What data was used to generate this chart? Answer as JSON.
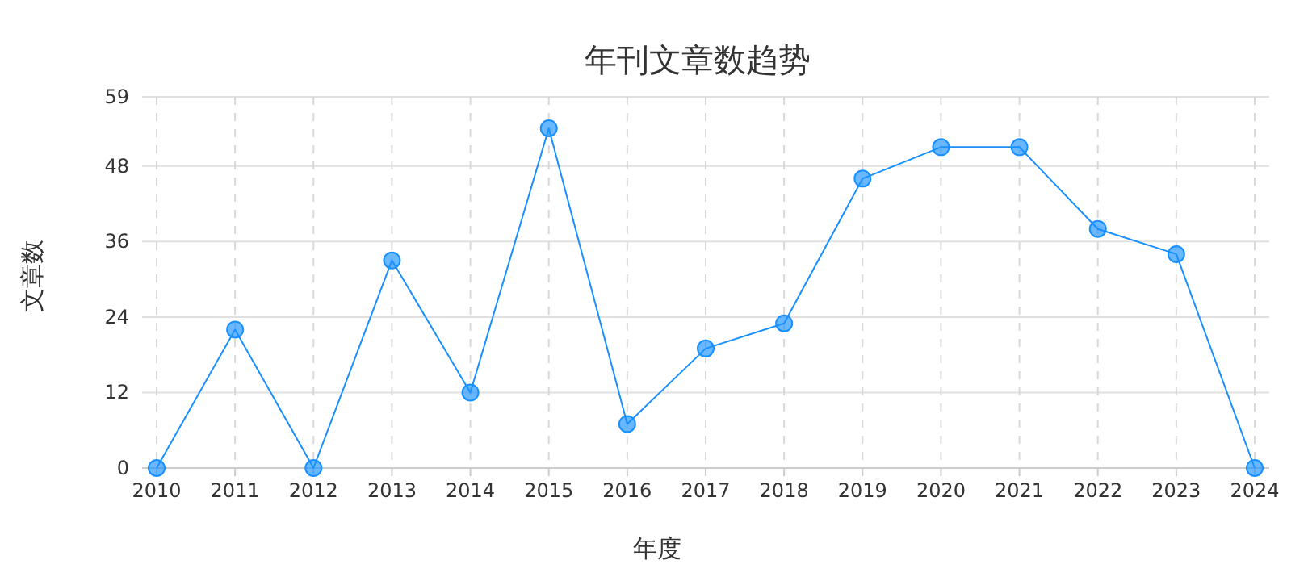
{
  "chart_data": {
    "type": "line",
    "title": "年刊文章数趋势",
    "xlabel": "年度",
    "ylabel": "文章数",
    "categories": [
      "2010",
      "2011",
      "2012",
      "2013",
      "2014",
      "2015",
      "2016",
      "2017",
      "2018",
      "2019",
      "2020",
      "2021",
      "2022",
      "2023",
      "2024"
    ],
    "series": [
      {
        "color": "#1890ff",
        "values": [
          0,
          22,
          0,
          33,
          12,
          54,
          7,
          19,
          23,
          46,
          51,
          51,
          38,
          34,
          0
        ]
      }
    ],
    "ylim": [
      0,
      59
    ],
    "yticks": [
      0,
      12,
      24,
      36,
      48,
      59
    ],
    "grid": true,
    "marker": "circle",
    "line_style": "solid"
  }
}
